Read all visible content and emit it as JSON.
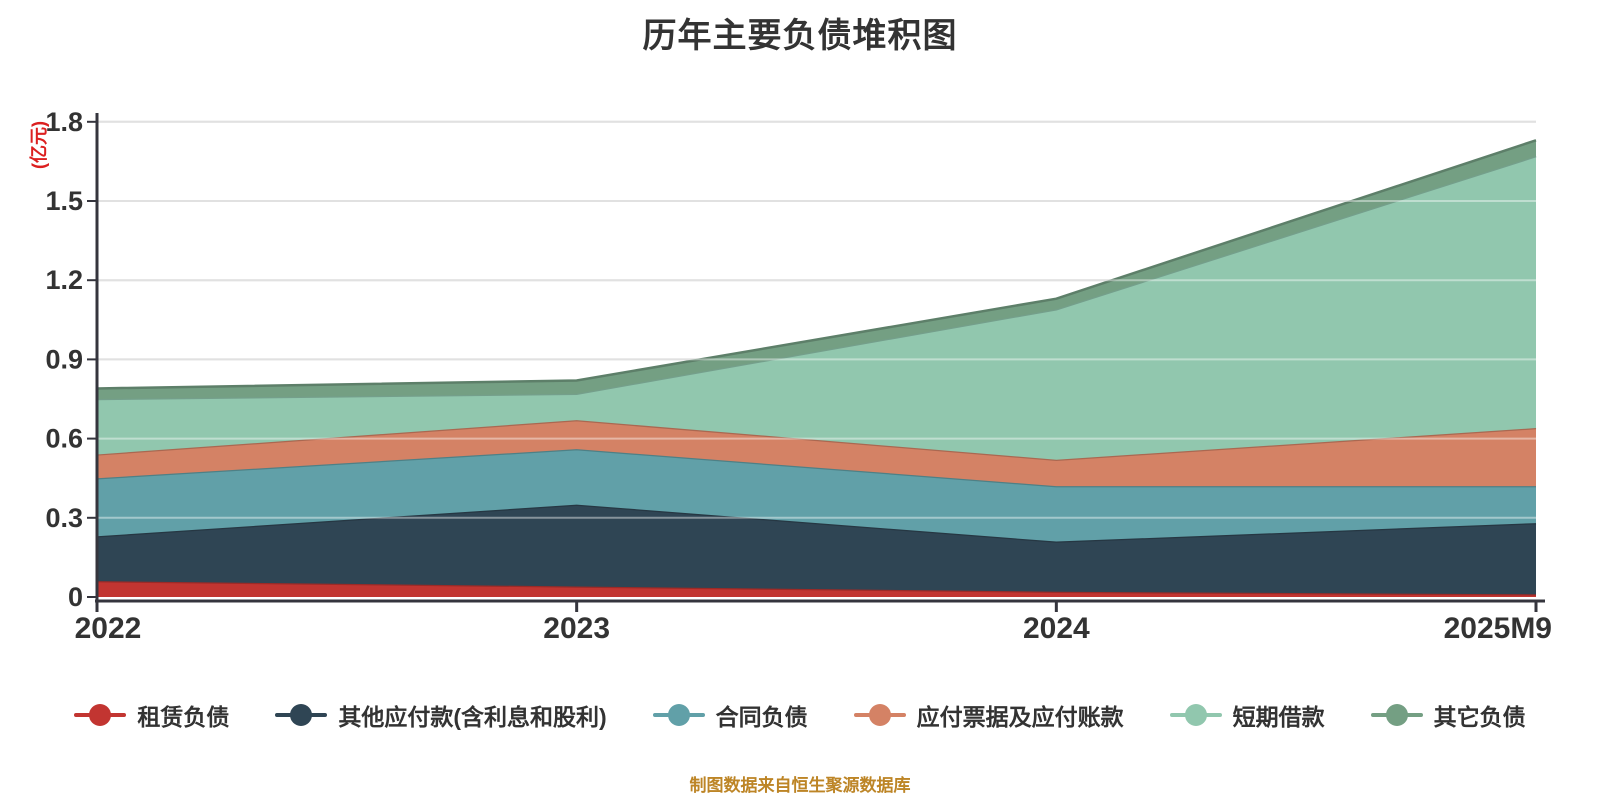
{
  "title": "历年主要负债堆积图",
  "y_axis_name": "(亿元)",
  "footer": "制图数据来自恒生聚源数据库",
  "chart_data": {
    "type": "area",
    "stacked": true,
    "title": "历年主要负债堆积图",
    "categories": [
      "2022",
      "2023",
      "2024",
      "2025M9"
    ],
    "series": [
      {
        "name": "租赁负债",
        "color": "#c23531",
        "values": [
          0.06,
          0.04,
          0.02,
          0.01
        ]
      },
      {
        "name": "其他应付款(含利息和股利)",
        "color": "#2f4554",
        "values": [
          0.17,
          0.31,
          0.19,
          0.27
        ]
      },
      {
        "name": "合同负债",
        "color": "#61a0a8",
        "values": [
          0.22,
          0.21,
          0.21,
          0.14
        ]
      },
      {
        "name": "应付票据及应付账款",
        "color": "#d48265",
        "values": [
          0.09,
          0.11,
          0.1,
          0.22
        ]
      },
      {
        "name": "短期借款",
        "color": "#91c7ae",
        "values": [
          0.21,
          0.1,
          0.57,
          1.03
        ]
      },
      {
        "name": "其它负债",
        "color": "#749f83",
        "values": [
          0.04,
          0.05,
          0.04,
          0.06
        ]
      }
    ],
    "stack_totals": [
      0.79,
      0.82,
      1.13,
      1.73
    ],
    "xlabel": "",
    "ylabel": "(亿元)",
    "ylim": [
      0,
      1.8
    ],
    "ytick_step": 0.3,
    "yticks": [
      "0",
      "0.3",
      "0.6",
      "0.9",
      "1.2",
      "1.5",
      "1.8"
    ],
    "grid": true,
    "legend_position": "bottom"
  },
  "colors": {
    "background": "#ffffff",
    "title_text": "#333333",
    "axis_text": "#333333",
    "axis_line": "#35353d",
    "gridline": "#cccccc",
    "gridline_overlay": "rgba(255,255,255,0.42)",
    "y_axis_name_text": "#dc2020",
    "legend_text": "#333333",
    "footer_text": "#bd8526"
  }
}
